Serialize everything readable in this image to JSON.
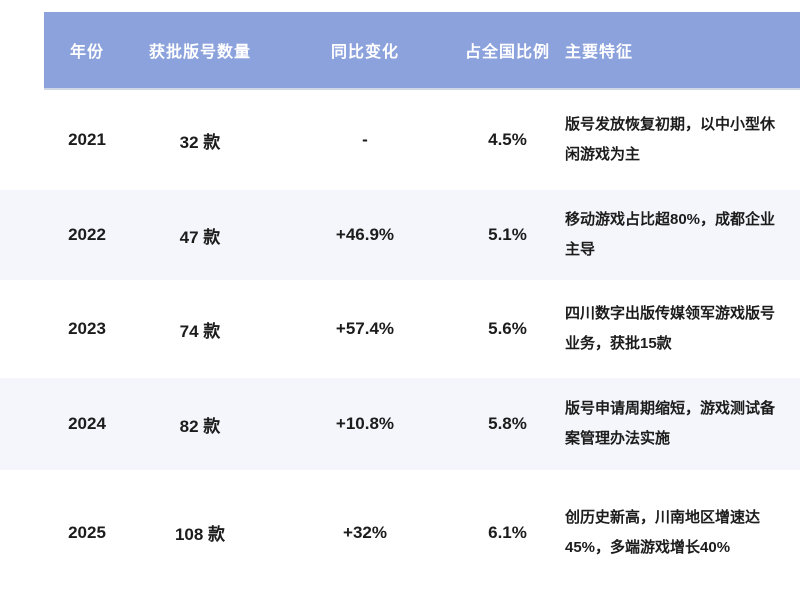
{
  "table": {
    "columns": [
      {
        "key": "year",
        "label": "年份"
      },
      {
        "key": "count",
        "label": "获批版号数量"
      },
      {
        "key": "yoy",
        "label": "同比变化"
      },
      {
        "key": "share",
        "label": "占全国比例"
      },
      {
        "key": "features",
        "label": "主要特征"
      }
    ],
    "rows": [
      {
        "year": "2021",
        "count": "32 款",
        "yoy": "-",
        "share": "4.5%",
        "features": "版号发放恢复初期，以中小型休闲游戏为主"
      },
      {
        "year": "2022",
        "count": "47 款",
        "yoy": "+46.9%",
        "share": "5.1%",
        "features": "移动游戏占比超80%，成都企业主导"
      },
      {
        "year": "2023",
        "count": "74 款",
        "yoy": "+57.4%",
        "share": "5.6%",
        "features": "四川数字出版传媒领军游戏版号业务，获批15款"
      },
      {
        "year": "2024",
        "count": "82 款",
        "yoy": "+10.8%",
        "share": "5.8%",
        "features": "版号申请周期缩短，游戏测试备案管理办法实施"
      },
      {
        "year": "2025",
        "count": "108 款",
        "yoy": "+32%",
        "share": "6.1%",
        "features": "创历史新高，川南地区增速达45%，多端游戏增长40%"
      }
    ]
  },
  "colors": {
    "header_bg": "#8CA2DC",
    "stripe_bg": "#F5F6FC",
    "header_text": "#FFFFFF",
    "body_text": "#1C1C1C"
  },
  "chart_data": {
    "type": "table",
    "title": "",
    "columns": [
      "年份",
      "获批版号数量",
      "同比变化",
      "占全国比例",
      "主要特征"
    ],
    "rows": [
      [
        "2021",
        "32 款",
        "-",
        "4.5%",
        "版号发放恢复初期，以中小型休闲游戏为主"
      ],
      [
        "2022",
        "47 款",
        "+46.9%",
        "5.1%",
        "移动游戏占比超80%，成都企业主导"
      ],
      [
        "2023",
        "74 款",
        "+57.4%",
        "5.6%",
        "四川数字出版传媒领军游戏版号业务，获批15款"
      ],
      [
        "2024",
        "82 款",
        "+10.8%",
        "5.8%",
        "版号申请周期缩短，游戏测试备案管理办法实施"
      ],
      [
        "2025",
        "108 款",
        "+32%",
        "6.1%",
        "创历史新高，川南地区增速达45%，多端游戏增长40%"
      ]
    ],
    "series": [
      {
        "name": "获批版号数量(款)",
        "x": [
          2021,
          2022,
          2023,
          2024,
          2025
        ],
        "values": [
          32,
          47,
          74,
          82,
          108
        ]
      },
      {
        "name": "同比变化(%)",
        "x": [
          2022,
          2023,
          2024,
          2025
        ],
        "values": [
          46.9,
          57.4,
          10.8,
          32
        ]
      },
      {
        "name": "占全国比例(%)",
        "x": [
          2021,
          2022,
          2023,
          2024,
          2025
        ],
        "values": [
          4.5,
          5.1,
          5.6,
          5.8,
          6.1
        ]
      }
    ]
  }
}
